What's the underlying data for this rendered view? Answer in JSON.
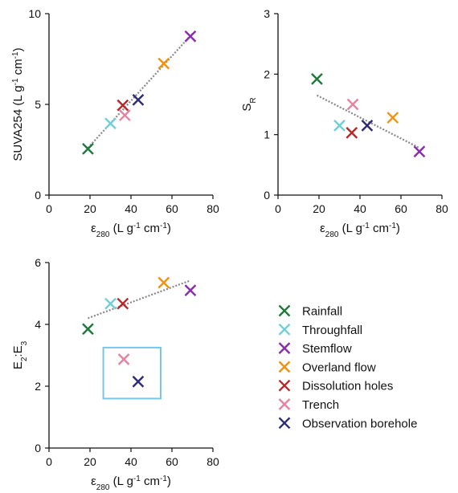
{
  "chart_data": [
    {
      "type": "scatter",
      "id": "p1",
      "xlabel": {
        "base": "ε",
        "sub": "280",
        "rest": " (L g",
        "sup": "-1",
        "tail": " cm",
        "sup2": "-1",
        "end": ")"
      },
      "ylabel": {
        "base": "SUVA254 (L g",
        "sup": "-1",
        "mid": " cm",
        "sup2": "-1",
        "end": ")"
      },
      "xlim": [
        0,
        80
      ],
      "ylim": [
        0,
        10
      ],
      "xticks": [
        "0",
        "20",
        "40",
        "60",
        "80"
      ],
      "yticks": [
        "0",
        "5",
        "10"
      ],
      "ytick_values": [
        0,
        5,
        10
      ],
      "trendline": [
        [
          19,
          2.6
        ],
        [
          70,
          8.9
        ]
      ],
      "series": [
        {
          "name": "Rainfall",
          "x": 19,
          "y": 2.55
        },
        {
          "name": "Throughfall",
          "x": 30,
          "y": 3.95
        },
        {
          "name": "Stemflow",
          "x": 69,
          "y": 8.75
        },
        {
          "name": "Overland flow",
          "x": 56,
          "y": 7.25
        },
        {
          "name": "Dissolution holes",
          "x": 36,
          "y": 4.95
        },
        {
          "name": "Trench",
          "x": 37,
          "y": 4.4
        },
        {
          "name": "Observation borehole",
          "x": 43.5,
          "y": 5.25
        }
      ]
    },
    {
      "type": "scatter",
      "id": "p2",
      "xlabel": {
        "base": "ε",
        "sub": "280",
        "rest": " (L g",
        "sup": "-1",
        "tail": " cm",
        "sup2": "-1",
        "end": ")"
      },
      "ylabel": {
        "base": "S",
        "sub": "R"
      },
      "xlim": [
        0,
        80
      ],
      "ylim": [
        0,
        3
      ],
      "xticks": [
        "0",
        "20",
        "40",
        "60",
        "80"
      ],
      "yticks": [
        "0",
        "1",
        "2",
        "3"
      ],
      "ytick_values": [
        0,
        1,
        2,
        3
      ],
      "trendline": [
        [
          19,
          1.65
        ],
        [
          69,
          0.78
        ]
      ],
      "series": [
        {
          "name": "Rainfall",
          "x": 19,
          "y": 1.92
        },
        {
          "name": "Throughfall",
          "x": 30,
          "y": 1.15
        },
        {
          "name": "Stemflow",
          "x": 69,
          "y": 0.72
        },
        {
          "name": "Overland flow",
          "x": 56,
          "y": 1.28
        },
        {
          "name": "Dissolution holes",
          "x": 36,
          "y": 1.03
        },
        {
          "name": "Trench",
          "x": 36.5,
          "y": 1.5
        },
        {
          "name": "Observation borehole",
          "x": 43.5,
          "y": 1.15
        }
      ]
    },
    {
      "type": "scatter",
      "id": "p3",
      "xlabel": {
        "base": "ε",
        "sub": "280",
        "rest": " (L g",
        "sup": "-1",
        "tail": " cm",
        "sup2": "-1",
        "end": ")"
      },
      "ylabel": {
        "base": "E",
        "sub": "2",
        "mid": ":E",
        "sub2": "3"
      },
      "xlim": [
        0,
        80
      ],
      "ylim": [
        0,
        6
      ],
      "xticks": [
        "0",
        "20",
        "40",
        "60",
        "80"
      ],
      "yticks": [
        "0",
        "2",
        "4",
        "6"
      ],
      "ytick_values": [
        0,
        2,
        4,
        6
      ],
      "trendline": [
        [
          19,
          4.2
        ],
        [
          69,
          5.42
        ]
      ],
      "box": {
        "x": [
          26.5,
          54.5
        ],
        "y": [
          1.6,
          3.25
        ]
      },
      "series": [
        {
          "name": "Rainfall",
          "x": 19,
          "y": 3.85
        },
        {
          "name": "Throughfall",
          "x": 30,
          "y": 4.67
        },
        {
          "name": "Stemflow",
          "x": 69,
          "y": 5.1
        },
        {
          "name": "Overland flow",
          "x": 56,
          "y": 5.35
        },
        {
          "name": "Dissolution holes",
          "x": 36,
          "y": 4.67
        },
        {
          "name": "Trench",
          "x": 36.5,
          "y": 2.87
        },
        {
          "name": "Observation borehole",
          "x": 43.5,
          "y": 2.15
        }
      ]
    }
  ],
  "legend": [
    {
      "name": "Rainfall",
      "color": "#1e7a3c"
    },
    {
      "name": "Throughfall",
      "color": "#6fcfd6"
    },
    {
      "name": "Stemflow",
      "color": "#8a2bb0"
    },
    {
      "name": "Overland flow",
      "color": "#f0920e"
    },
    {
      "name": "Dissolution holes",
      "color": "#b8282a"
    },
    {
      "name": "Trench",
      "color": "#e682a0"
    },
    {
      "name": "Observation borehole",
      "color": "#2e2a78"
    }
  ],
  "colors": {
    "axis": "#111111",
    "trendline": "#888888",
    "box": "#74c6ea"
  }
}
